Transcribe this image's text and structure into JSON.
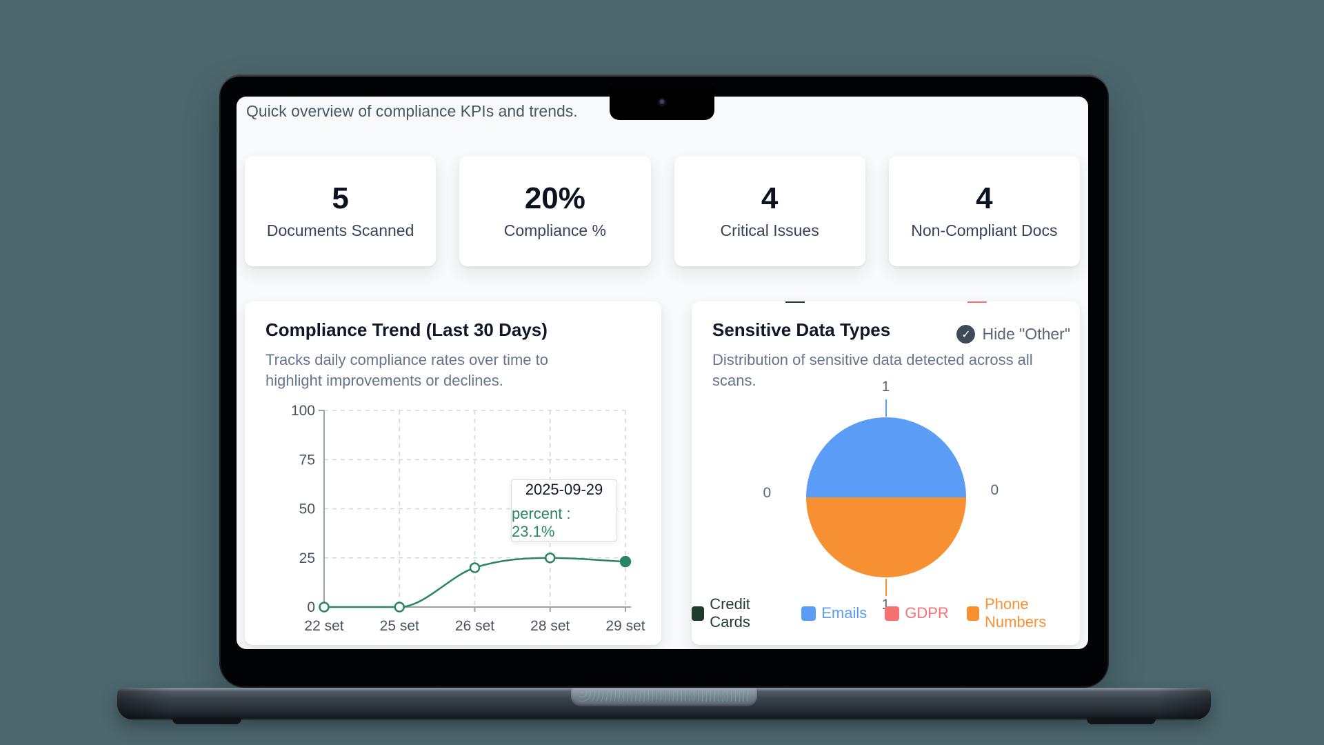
{
  "colors": {
    "teal_bg": "#4C676D",
    "accent_green": "#2A8566",
    "emails_blue": "#5B9CF6",
    "phone_orange": "#F78F33",
    "gdpr_red": "#F87171",
    "credit_dark": "#1F3B2F"
  },
  "header": {
    "text": "Quick overview of compliance KPIs and trends."
  },
  "kpis": [
    {
      "value": "5",
      "label": "Documents Scanned"
    },
    {
      "value": "20%",
      "label": "Compliance %"
    },
    {
      "value": "4",
      "label": "Critical Issues"
    },
    {
      "value": "4",
      "label": "Non-Compliant Docs"
    }
  ],
  "trend_card": {
    "title": "Compliance Trend (Last 30 Days)",
    "subtitle": "Tracks daily compliance rates over time to highlight improvements or declines.",
    "tooltip": {
      "date": "2025-09-29",
      "value": "percent : 23.1%"
    }
  },
  "pie_card": {
    "title": "Sensitive Data Types",
    "toggle_label": "Hide \"Other\"",
    "toggle_checked": true,
    "subtitle": "Distribution of sensitive data detected across all scans.",
    "callouts": [
      {
        "side": "top",
        "series": "Emails",
        "value": "1"
      },
      {
        "side": "right",
        "series": "GDPR",
        "value": "0"
      },
      {
        "side": "bottom",
        "series": "Phone Numbers",
        "value": "1"
      },
      {
        "side": "left",
        "series": "Credit Cards",
        "value": "0"
      }
    ],
    "legend": [
      {
        "label": "Credit Cards",
        "color": "#1F3B2F"
      },
      {
        "label": "Emails",
        "color": "#5B9CF6"
      },
      {
        "label": "GDPR",
        "color": "#F87171"
      },
      {
        "label": "Phone Numbers",
        "color": "#F78F33"
      }
    ]
  },
  "chart_data": [
    {
      "type": "line",
      "title": "Compliance Trend (Last 30 Days)",
      "x": [
        "22 set",
        "25 set",
        "26 set",
        "28 set",
        "29 set"
      ],
      "series": [
        {
          "name": "percent",
          "values": [
            0,
            0,
            20,
            25,
            23.1
          ],
          "color": "#2A8566"
        }
      ],
      "ylim": [
        0,
        100
      ],
      "yticks": [
        0,
        25,
        50,
        75,
        100
      ],
      "grid": "dashed",
      "legend_position": "none",
      "tooltip": {
        "x": "2025-09-29",
        "text": "percent : 23.1%"
      }
    },
    {
      "type": "pie",
      "title": "Sensitive Data Types",
      "slices": [
        {
          "label": "Credit Cards",
          "value": 0,
          "color": "#1F3B2F"
        },
        {
          "label": "Emails",
          "value": 1,
          "color": "#5B9CF6"
        },
        {
          "label": "GDPR",
          "value": 0,
          "color": "#F87171"
        },
        {
          "label": "Phone Numbers",
          "value": 1,
          "color": "#F78F33"
        }
      ],
      "legend_position": "bottom"
    }
  ]
}
